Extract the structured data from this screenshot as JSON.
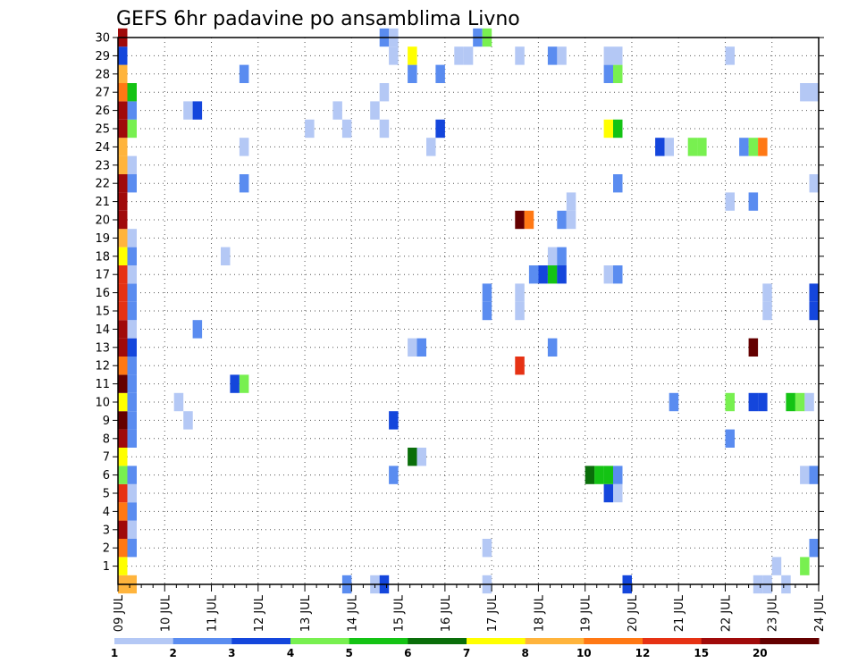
{
  "chart_data": {
    "type": "heatmap",
    "title": "GEFS 6hr padavine po ansamblima Livno",
    "xlabel": "",
    "ylabel": "",
    "x_ticks": [
      "09 JUL",
      "10 JUL",
      "11 JUL",
      "12 JUL",
      "13 JUL",
      "14 JUL",
      "15 JUL",
      "16 JUL",
      "17 JUL",
      "18 JUL",
      "19 JUL",
      "20 JUL",
      "21 JUL",
      "22 JUL",
      "23 JUL",
      "24 JUL"
    ],
    "y_ticks": [
      "1",
      "2",
      "3",
      "4",
      "5",
      "6",
      "7",
      "8",
      "9",
      "10",
      "11",
      "12",
      "13",
      "14",
      "15",
      "16",
      "17",
      "18",
      "19",
      "20",
      "21",
      "22",
      "23",
      "24",
      "25",
      "26",
      "27",
      "28",
      "29",
      "30"
    ],
    "xlim": [
      0,
      15
    ],
    "ylim": [
      0,
      30
    ],
    "grid": true,
    "colorbar": {
      "levels": [
        "1",
        "2",
        "3",
        "4",
        "5",
        "6",
        "7",
        "8",
        "10",
        "12",
        "15",
        "20"
      ],
      "colors": [
        "#b4c8f5",
        "#5a8cf0",
        "#1446dc",
        "#78f050",
        "#14c314",
        "#0a6e0a",
        "#ffff00",
        "#ffb43c",
        "#ff7814",
        "#e63214",
        "#a00a0a",
        "#640000"
      ]
    },
    "cells": [
      [
        0.1,
        0,
        "#ffb43c"
      ],
      [
        0.3,
        0,
        "#ffb43c"
      ],
      [
        4.9,
        0,
        "#5a8cf0"
      ],
      [
        5.5,
        0,
        "#b4c8f5"
      ],
      [
        5.7,
        0,
        "#1446dc"
      ],
      [
        7.9,
        0,
        "#b4c8f5"
      ],
      [
        10.9,
        0,
        "#1446dc"
      ],
      [
        13.7,
        0,
        "#b4c8f5"
      ],
      [
        13.9,
        0,
        "#b4c8f5"
      ],
      [
        14.3,
        0,
        "#b4c8f5"
      ],
      [
        0.1,
        1,
        "#ffff00"
      ],
      [
        14.1,
        1,
        "#b4c8f5"
      ],
      [
        14.7,
        1,
        "#78f050"
      ],
      [
        0.1,
        2,
        "#ff7814"
      ],
      [
        0.3,
        2,
        "#5a8cf0"
      ],
      [
        7.9,
        2,
        "#b4c8f5"
      ],
      [
        14.9,
        2,
        "#5a8cf0"
      ],
      [
        0.1,
        3,
        "#a00a0a"
      ],
      [
        0.3,
        3,
        "#b4c8f5"
      ],
      [
        0.1,
        4,
        "#ff7814"
      ],
      [
        0.3,
        4,
        "#5a8cf0"
      ],
      [
        0.1,
        5,
        "#e63214"
      ],
      [
        0.3,
        5,
        "#b4c8f5"
      ],
      [
        10.5,
        5,
        "#1446dc"
      ],
      [
        10.7,
        5,
        "#b4c8f5"
      ],
      [
        0.1,
        6,
        "#78f050"
      ],
      [
        0.3,
        6,
        "#5a8cf0"
      ],
      [
        5.9,
        6,
        "#5a8cf0"
      ],
      [
        10.1,
        6,
        "#0a6e0a"
      ],
      [
        10.3,
        6,
        "#14c314"
      ],
      [
        10.5,
        6,
        "#14c314"
      ],
      [
        10.7,
        6,
        "#5a8cf0"
      ],
      [
        14.7,
        6,
        "#b4c8f5"
      ],
      [
        14.9,
        6,
        "#5a8cf0"
      ],
      [
        0.1,
        7,
        "#ffff00"
      ],
      [
        6.3,
        7,
        "#0a6e0a"
      ],
      [
        6.5,
        7,
        "#b4c8f5"
      ],
      [
        0.1,
        8,
        "#a00a0a"
      ],
      [
        0.3,
        8,
        "#5a8cf0"
      ],
      [
        13.1,
        8,
        "#5a8cf0"
      ],
      [
        0.1,
        9,
        "#640000"
      ],
      [
        0.3,
        9,
        "#5a8cf0"
      ],
      [
        1.5,
        9,
        "#b4c8f5"
      ],
      [
        5.9,
        9,
        "#1446dc"
      ],
      [
        0.1,
        10,
        "#ffff00"
      ],
      [
        0.3,
        10,
        "#5a8cf0"
      ],
      [
        1.3,
        10,
        "#b4c8f5"
      ],
      [
        11.9,
        10,
        "#5a8cf0"
      ],
      [
        13.1,
        10,
        "#78f050"
      ],
      [
        13.6,
        10,
        "#1446dc"
      ],
      [
        13.8,
        10,
        "#1446dc"
      ],
      [
        14.4,
        10,
        "#14c314"
      ],
      [
        14.6,
        10,
        "#78f050"
      ],
      [
        14.8,
        10,
        "#b4c8f5"
      ],
      [
        0.1,
        11,
        "#640000"
      ],
      [
        0.3,
        11,
        "#5a8cf0"
      ],
      [
        2.5,
        11,
        "#1446dc"
      ],
      [
        2.7,
        11,
        "#78f050"
      ],
      [
        0.1,
        12,
        "#ff7814"
      ],
      [
        0.3,
        12,
        "#5a8cf0"
      ],
      [
        8.6,
        12,
        "#e63214"
      ],
      [
        0.1,
        13,
        "#a00a0a"
      ],
      [
        0.3,
        13,
        "#1446dc"
      ],
      [
        6.3,
        13,
        "#b4c8f5"
      ],
      [
        6.5,
        13,
        "#5a8cf0"
      ],
      [
        9.3,
        13,
        "#5a8cf0"
      ],
      [
        13.6,
        13,
        "#640000"
      ],
      [
        0.1,
        14,
        "#a00a0a"
      ],
      [
        0.3,
        14,
        "#b4c8f5"
      ],
      [
        1.7,
        14,
        "#5a8cf0"
      ],
      [
        0.1,
        15,
        "#e63214"
      ],
      [
        0.3,
        15,
        "#5a8cf0"
      ],
      [
        7.9,
        15,
        "#5a8cf0"
      ],
      [
        8.6,
        15,
        "#b4c8f5"
      ],
      [
        13.9,
        15,
        "#b4c8f5"
      ],
      [
        14.9,
        15,
        "#1446dc"
      ],
      [
        0.1,
        16,
        "#e63214"
      ],
      [
        0.3,
        16,
        "#5a8cf0"
      ],
      [
        7.9,
        16,
        "#5a8cf0"
      ],
      [
        8.6,
        16,
        "#b4c8f5"
      ],
      [
        13.9,
        16,
        "#b4c8f5"
      ],
      [
        14.9,
        16,
        "#1446dc"
      ],
      [
        0.1,
        17,
        "#e63214"
      ],
      [
        0.3,
        17,
        "#b4c8f5"
      ],
      [
        8.9,
        17,
        "#5a8cf0"
      ],
      [
        9.1,
        17,
        "#1446dc"
      ],
      [
        9.3,
        17,
        "#14c314"
      ],
      [
        9.5,
        17,
        "#1446dc"
      ],
      [
        10.5,
        17,
        "#b4c8f5"
      ],
      [
        10.7,
        17,
        "#5a8cf0"
      ],
      [
        0.1,
        18,
        "#ffff00"
      ],
      [
        0.3,
        18,
        "#5a8cf0"
      ],
      [
        2.3,
        18,
        "#b4c8f5"
      ],
      [
        9.3,
        18,
        "#b4c8f5"
      ],
      [
        9.5,
        18,
        "#5a8cf0"
      ],
      [
        0.1,
        19,
        "#ffb43c"
      ],
      [
        0.3,
        19,
        "#b4c8f5"
      ],
      [
        0.1,
        20,
        "#a00a0a"
      ],
      [
        8.6,
        20,
        "#640000"
      ],
      [
        8.8,
        20,
        "#ff7814"
      ],
      [
        9.5,
        20,
        "#5a8cf0"
      ],
      [
        9.7,
        20,
        "#b4c8f5"
      ],
      [
        0.1,
        21,
        "#a00a0a"
      ],
      [
        9.7,
        21,
        "#b4c8f5"
      ],
      [
        13.1,
        21,
        "#b4c8f5"
      ],
      [
        13.6,
        21,
        "#5a8cf0"
      ],
      [
        0.1,
        22,
        "#a00a0a"
      ],
      [
        0.3,
        22,
        "#5a8cf0"
      ],
      [
        2.7,
        22,
        "#5a8cf0"
      ],
      [
        10.7,
        22,
        "#5a8cf0"
      ],
      [
        14.9,
        22,
        "#b4c8f5"
      ],
      [
        0.1,
        23,
        "#ffb43c"
      ],
      [
        0.3,
        23,
        "#b4c8f5"
      ],
      [
        0.1,
        24,
        "#ffb43c"
      ],
      [
        2.7,
        24,
        "#b4c8f5"
      ],
      [
        6.7,
        24,
        "#b4c8f5"
      ],
      [
        11.6,
        24,
        "#1446dc"
      ],
      [
        11.8,
        24,
        "#b4c8f5"
      ],
      [
        12.3,
        24,
        "#78f050"
      ],
      [
        12.5,
        24,
        "#78f050"
      ],
      [
        13.4,
        24,
        "#5a8cf0"
      ],
      [
        13.6,
        24,
        "#78f050"
      ],
      [
        13.8,
        24,
        "#ff7814"
      ],
      [
        0.1,
        25,
        "#a00a0a"
      ],
      [
        0.3,
        25,
        "#78f050"
      ],
      [
        4.1,
        25,
        "#b4c8f5"
      ],
      [
        4.9,
        25,
        "#b4c8f5"
      ],
      [
        5.7,
        25,
        "#b4c8f5"
      ],
      [
        6.9,
        25,
        "#1446dc"
      ],
      [
        10.5,
        25,
        "#ffff00"
      ],
      [
        10.7,
        25,
        "#14c314"
      ],
      [
        0.1,
        26,
        "#a00a0a"
      ],
      [
        0.3,
        26,
        "#5a8cf0"
      ],
      [
        1.5,
        26,
        "#b4c8f5"
      ],
      [
        1.7,
        26,
        "#1446dc"
      ],
      [
        4.7,
        26,
        "#b4c8f5"
      ],
      [
        5.5,
        26,
        "#b4c8f5"
      ],
      [
        0.1,
        27,
        "#ff7814"
      ],
      [
        0.3,
        27,
        "#14c314"
      ],
      [
        5.7,
        27,
        "#b4c8f5"
      ],
      [
        14.7,
        27,
        "#b4c8f5"
      ],
      [
        14.9,
        27,
        "#b4c8f5"
      ],
      [
        0.1,
        28,
        "#ffb43c"
      ],
      [
        2.7,
        28,
        "#5a8cf0"
      ],
      [
        6.3,
        28,
        "#5a8cf0"
      ],
      [
        6.9,
        28,
        "#5a8cf0"
      ],
      [
        10.5,
        28,
        "#5a8cf0"
      ],
      [
        10.7,
        28,
        "#78f050"
      ],
      [
        0.1,
        29,
        "#1446dc"
      ],
      [
        5.9,
        29,
        "#b4c8f5"
      ],
      [
        6.3,
        29,
        "#ffff00"
      ],
      [
        7.3,
        29,
        "#b4c8f5"
      ],
      [
        7.5,
        29,
        "#b4c8f5"
      ],
      [
        8.6,
        29,
        "#b4c8f5"
      ],
      [
        9.3,
        29,
        "#5a8cf0"
      ],
      [
        9.5,
        29,
        "#b4c8f5"
      ],
      [
        10.5,
        29,
        "#b4c8f5"
      ],
      [
        10.7,
        29,
        "#b4c8f5"
      ],
      [
        13.1,
        29,
        "#b4c8f5"
      ],
      [
        0.1,
        30,
        "#a00a0a"
      ],
      [
        5.7,
        30,
        "#5a8cf0"
      ],
      [
        5.9,
        30,
        "#b4c8f5"
      ],
      [
        7.7,
        30,
        "#5a8cf0"
      ],
      [
        7.9,
        30,
        "#78f050"
      ]
    ]
  }
}
